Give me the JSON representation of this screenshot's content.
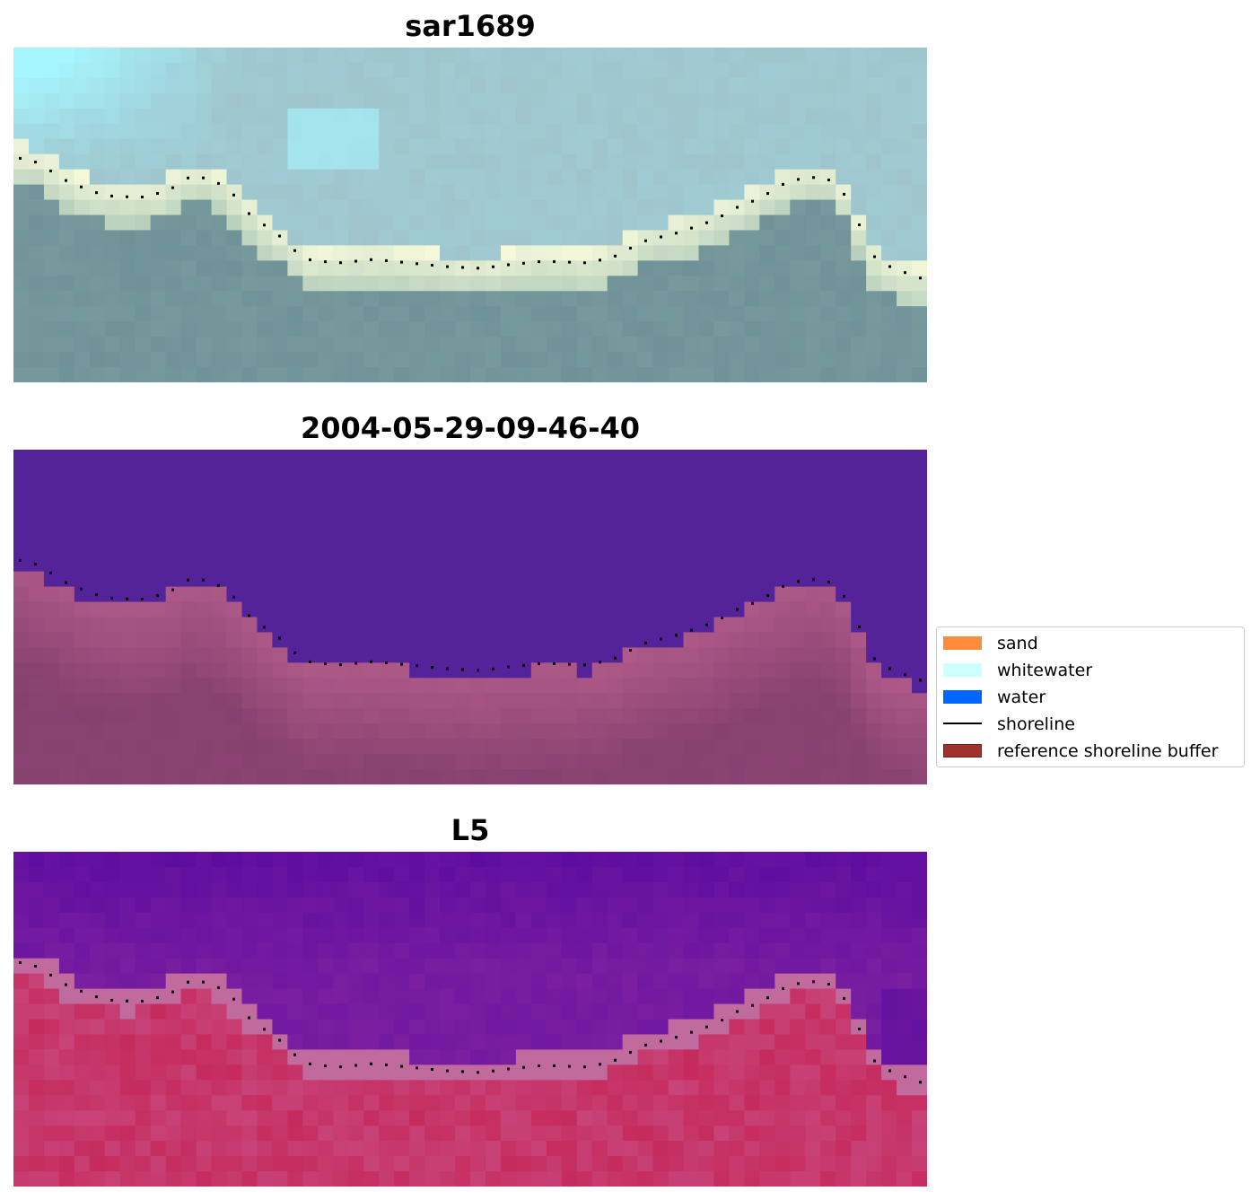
{
  "panels": [
    {
      "title": "sar1689",
      "style": "rgb"
    },
    {
      "title": "2004-05-29-09-46-40",
      "style": "classified"
    },
    {
      "title": "L5",
      "style": "index"
    }
  ],
  "legend": {
    "items": [
      {
        "label": "sand",
        "kind": "patch",
        "color": "#ff8c3a",
        "edge": "#ff8c3a"
      },
      {
        "label": "whitewater",
        "kind": "patch",
        "color": "#ccffff",
        "edge": "#ccffff"
      },
      {
        "label": "water",
        "kind": "patch",
        "color": "#0066ff",
        "edge": "#0066ff"
      },
      {
        "label": "shoreline",
        "kind": "line",
        "color": "#000000"
      },
      {
        "label": "reference shoreline buffer",
        "kind": "patch",
        "color": "#a0322e",
        "edge": "#7a1f1c"
      }
    ]
  },
  "colors": {
    "classified_water": "#542399",
    "classified_land": "#b05b8a",
    "index_water": "#7a1fa0",
    "index_land": "#c41a4a",
    "shoreline_dots": "#000000"
  }
}
